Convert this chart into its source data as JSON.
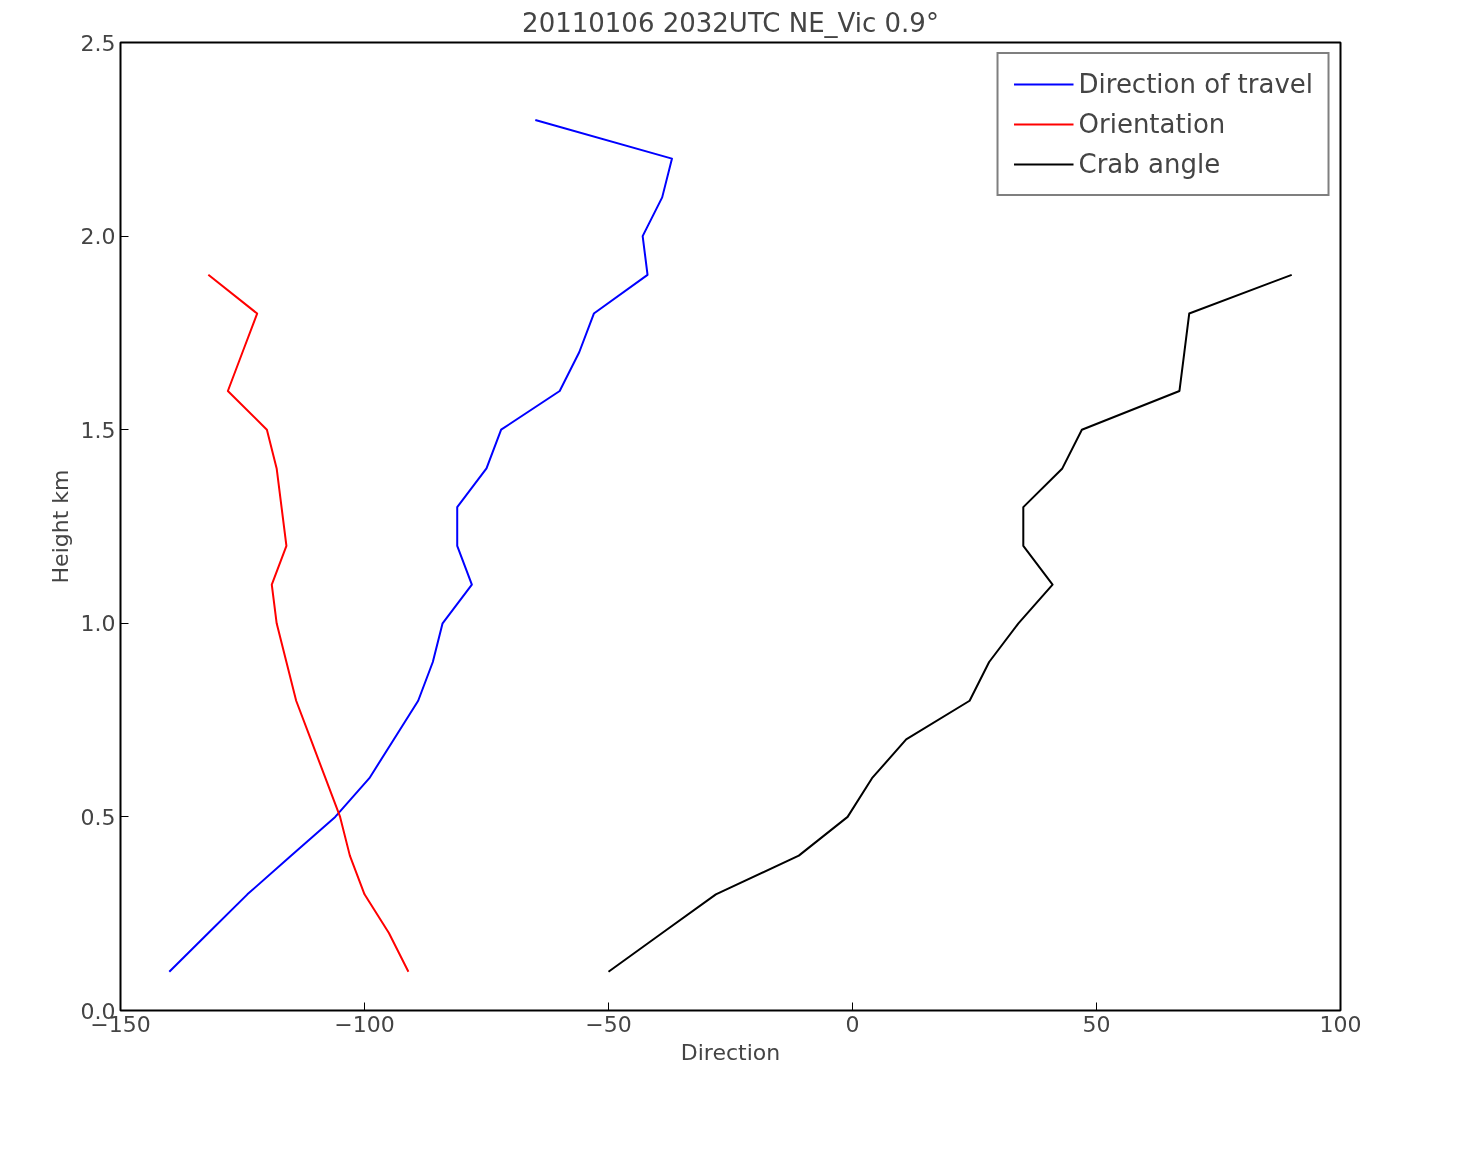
{
  "chart_data": {
    "type": "line",
    "title": "20110106 2032UTC NE_Vic 0.9°",
    "xlabel": "Direction",
    "ylabel": "Height km",
    "xlim": [
      -150,
      100
    ],
    "xticks": [
      -150,
      -100,
      -50,
      0,
      50,
      100
    ],
    "ylim": [
      0,
      2.5
    ],
    "yticks": [
      {
        "value": 0,
        "label": "0.0"
      },
      {
        "value": 0.5,
        "label": "0.5"
      },
      {
        "value": 1,
        "label": "1.0"
      },
      {
        "value": 1.5,
        "label": "1.5"
      },
      {
        "value": 2,
        "label": "2.0"
      },
      {
        "value": 2.5,
        "label": "2.5"
      }
    ],
    "grid": false,
    "legend": "top right",
    "line_style": "solid",
    "series": [
      {
        "name": "Direction of travel",
        "color": "#0000ff",
        "x": [
          -140,
          -132,
          -124,
          -115,
          -106,
          -99,
          -94,
          -89,
          -86,
          -84,
          -78,
          -81,
          -81,
          -75,
          -72,
          -60,
          -56,
          -53,
          -42,
          -43,
          -39,
          -37,
          -65
        ],
        "values": [
          0.1,
          0.2,
          0.3,
          0.4,
          0.5,
          0.6,
          0.7,
          0.8,
          0.9,
          1.0,
          1.1,
          1.2,
          1.3,
          1.4,
          1.5,
          1.6,
          1.7,
          1.8,
          1.9,
          2.0,
          2.1,
          2.2,
          2.3
        ]
      },
      {
        "name": "Orientation",
        "color": "#ff0000",
        "x": [
          -91,
          -95,
          -100,
          -103,
          -105,
          -108,
          -111,
          -114,
          -116,
          -118,
          -119,
          -116,
          -117,
          -118,
          -120,
          -128,
          -125,
          -122,
          -132
        ],
        "values": [
          0.1,
          0.2,
          0.3,
          0.4,
          0.5,
          0.6,
          0.7,
          0.8,
          0.9,
          1.0,
          1.1,
          1.2,
          1.3,
          1.4,
          1.5,
          1.6,
          1.7,
          1.8,
          1.9
        ]
      },
      {
        "name": "Crab angle",
        "color": "#000000",
        "x": [
          -50,
          -39,
          -28,
          -11,
          -1,
          4,
          11,
          24,
          28,
          34,
          41,
          35,
          35,
          43,
          47,
          67,
          68,
          69,
          90
        ],
        "values": [
          0.1,
          0.2,
          0.3,
          0.4,
          0.5,
          0.6,
          0.7,
          0.8,
          0.9,
          1.0,
          1.1,
          1.2,
          1.3,
          1.4,
          1.5,
          1.6,
          1.7,
          1.8,
          1.9
        ]
      }
    ]
  }
}
